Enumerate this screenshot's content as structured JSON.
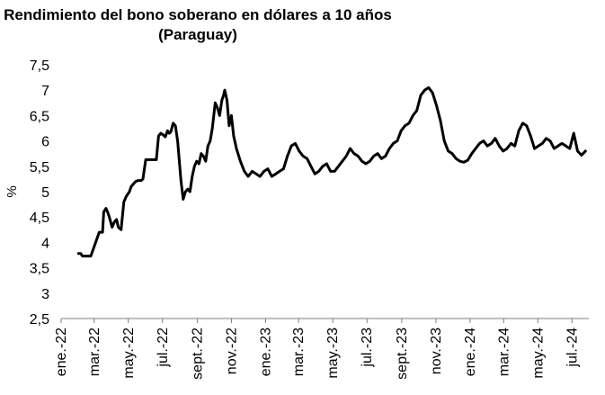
{
  "chart_data": {
    "type": "line",
    "title": "Rendimiento del bono soberano en dólares a 10 años",
    "subtitle": "(Paraguay)",
    "xlabel": "",
    "ylabel": "%",
    "ylim": [
      2.5,
      7.5
    ],
    "yticks": [
      "2,5",
      "3",
      "3,5",
      "4",
      "4,5",
      "5",
      "5,5",
      "6",
      "6,5",
      "7",
      "7,5"
    ],
    "xticks": [
      "ene.-22",
      "mar.-22",
      "may.-22",
      "jul.-22",
      "sept.-22",
      "nov.-22",
      "ene.-23",
      "mar.-23",
      "may.-23",
      "jul.-23",
      "sept.-23",
      "nov.-23",
      "ene.-24",
      "mar.-24",
      "may.-24",
      "jul.-24"
    ],
    "grid": false,
    "legend": "none",
    "series": [
      {
        "color": "#000000",
        "x": [
          "2022-02-01",
          "2022-02-05",
          "2022-02-08",
          "2022-02-22",
          "2022-02-23",
          "2022-03-10",
          "2022-03-12",
          "2022-03-16",
          "2022-03-18",
          "2022-03-22",
          "2022-03-25",
          "2022-03-28",
          "2022-04-02",
          "2022-04-06",
          "2022-04-10",
          "2022-04-13",
          "2022-04-18",
          "2022-04-23",
          "2022-04-27",
          "2022-05-03",
          "2022-05-06",
          "2022-05-10",
          "2022-05-14",
          "2022-05-18",
          "2022-05-24",
          "2022-05-27",
          "2022-06-01",
          "2022-06-13",
          "2022-06-14",
          "2022-06-16",
          "2022-06-20",
          "2022-06-24",
          "2022-06-28",
          "2022-07-02",
          "2022-07-06",
          "2022-07-10",
          "2022-07-13",
          "2022-07-16",
          "2022-07-20",
          "2022-07-24",
          "2022-07-28",
          "2022-07-31",
          "2022-08-03",
          "2022-08-07",
          "2022-08-11",
          "2022-08-15",
          "2022-08-19",
          "2022-08-23",
          "2022-08-27",
          "2022-08-31",
          "2022-09-04",
          "2022-09-08",
          "2022-09-12",
          "2022-09-16",
          "2022-09-20",
          "2022-09-24",
          "2022-09-28",
          "2022-10-03",
          "2022-10-07",
          "2022-10-11",
          "2022-10-15",
          "2022-10-18",
          "2022-10-20",
          "2022-10-24",
          "2022-10-28",
          "2022-11-01",
          "2022-11-05",
          "2022-11-10",
          "2022-11-17",
          "2022-11-24",
          "2022-12-01",
          "2022-12-08",
          "2022-12-15",
          "2022-12-22",
          "2022-12-29",
          "2023-01-05",
          "2023-01-12",
          "2023-01-19",
          "2023-01-26",
          "2023-02-02",
          "2023-02-09",
          "2023-02-16",
          "2023-02-23",
          "2023-03-02",
          "2023-03-09",
          "2023-03-16",
          "2023-03-23",
          "2023-03-30",
          "2023-04-06",
          "2023-04-13",
          "2023-04-20",
          "2023-04-27",
          "2023-05-04",
          "2023-05-11",
          "2023-05-18",
          "2023-05-25",
          "2023-06-01",
          "2023-06-08",
          "2023-06-15",
          "2023-06-22",
          "2023-06-29",
          "2023-07-06",
          "2023-07-13",
          "2023-07-20",
          "2023-07-27",
          "2023-08-03",
          "2023-08-10",
          "2023-08-17",
          "2023-08-24",
          "2023-08-31",
          "2023-09-07",
          "2023-09-14",
          "2023-09-21",
          "2023-09-28",
          "2023-10-05",
          "2023-10-12",
          "2023-10-19",
          "2023-10-26",
          "2023-11-02",
          "2023-11-09",
          "2023-11-16",
          "2023-11-23",
          "2023-11-30",
          "2023-12-07",
          "2023-12-14",
          "2023-12-21",
          "2023-12-28",
          "2024-01-04",
          "2024-01-11",
          "2024-01-18",
          "2024-01-25",
          "2024-02-01",
          "2024-02-08",
          "2024-02-15",
          "2024-02-22",
          "2024-02-29",
          "2024-03-07",
          "2024-03-14",
          "2024-03-21",
          "2024-03-28",
          "2024-04-04",
          "2024-04-11",
          "2024-04-18",
          "2024-04-25",
          "2024-05-02",
          "2024-05-09",
          "2024-05-16",
          "2024-05-23",
          "2024-05-30",
          "2024-06-06",
          "2024-06-13",
          "2024-06-20",
          "2024-06-27",
          "2024-07-04",
          "2024-07-11",
          "2024-07-18",
          "2024-07-25"
        ],
        "y": [
          3.78,
          3.78,
          3.73,
          3.73,
          3.73,
          4.2,
          4.2,
          4.2,
          4.6,
          4.67,
          4.6,
          4.5,
          4.3,
          4.4,
          4.45,
          4.3,
          4.25,
          4.8,
          4.9,
          5.0,
          5.1,
          5.15,
          5.2,
          5.22,
          5.22,
          5.25,
          5.63,
          5.63,
          5.63,
          5.63,
          5.63,
          6.1,
          6.15,
          6.12,
          6.08,
          6.2,
          6.15,
          6.18,
          6.35,
          6.3,
          6.0,
          5.6,
          5.2,
          4.85,
          5.0,
          5.05,
          5.0,
          5.3,
          5.5,
          5.6,
          5.55,
          5.75,
          5.7,
          5.6,
          5.9,
          6.0,
          6.25,
          6.75,
          6.65,
          6.5,
          6.8,
          6.9,
          7.0,
          6.8,
          6.3,
          6.5,
          6.1,
          5.85,
          5.6,
          5.4,
          5.3,
          5.4,
          5.35,
          5.3,
          5.4,
          5.45,
          5.3,
          5.35,
          5.4,
          5.45,
          5.7,
          5.9,
          5.95,
          5.8,
          5.7,
          5.65,
          5.5,
          5.35,
          5.4,
          5.5,
          5.55,
          5.4,
          5.4,
          5.5,
          5.6,
          5.7,
          5.85,
          5.75,
          5.7,
          5.6,
          5.55,
          5.6,
          5.7,
          5.75,
          5.65,
          5.7,
          5.85,
          5.95,
          6.0,
          6.2,
          6.3,
          6.35,
          6.5,
          6.6,
          6.9,
          7.0,
          7.05,
          6.95,
          6.7,
          6.4,
          6.0,
          5.8,
          5.75,
          5.65,
          5.6,
          5.58,
          5.62,
          5.75,
          5.85,
          5.95,
          6.0,
          5.9,
          5.95,
          6.05,
          5.9,
          5.8,
          5.85,
          5.95,
          5.9,
          6.2,
          6.35,
          6.3,
          6.1,
          5.85,
          5.9,
          5.95,
          6.05,
          6.0,
          5.85,
          5.9,
          5.95,
          5.9,
          5.85,
          6.15,
          5.8,
          5.72,
          5.8
        ]
      }
    ]
  }
}
